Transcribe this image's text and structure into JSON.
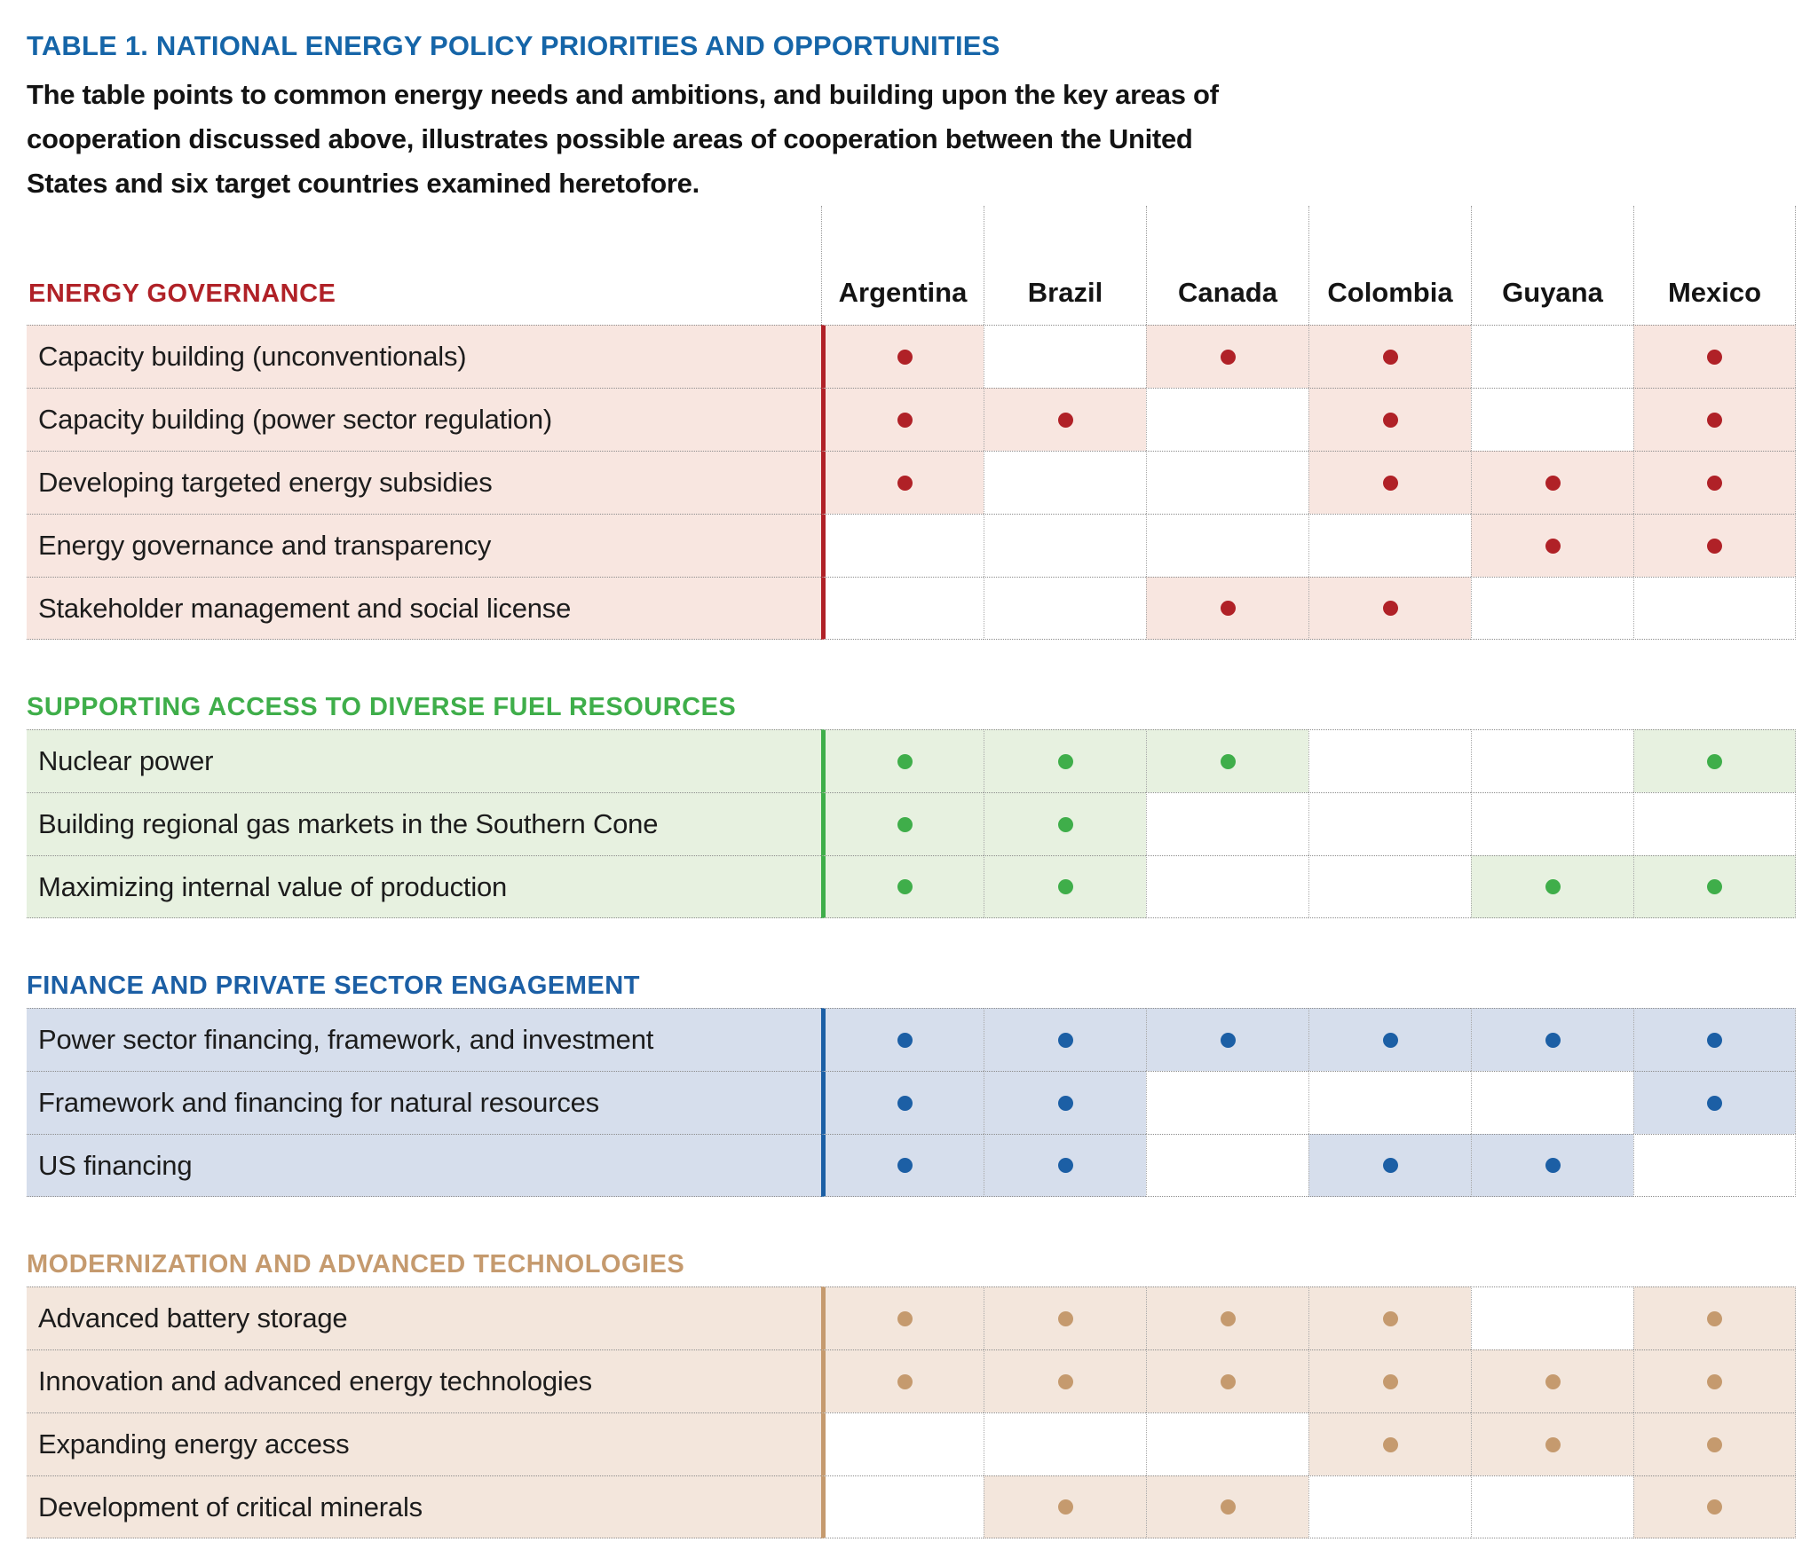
{
  "title": "TABLE 1. NATIONAL ENERGY POLICY PRIORITIES AND OPPORTUNITIES",
  "title_color": "#1565a8",
  "subtitle_lines": [
    "The table points to common energy needs and ambitions, and building upon the key areas of",
    "cooperation discussed above, illustrates possible areas of cooperation between the United",
    "States and six target countries examined heretofore."
  ],
  "countries": [
    "Argentina",
    "Brazil",
    "Canada",
    "Colombia",
    "Guyana",
    "Mexico"
  ],
  "marker": "filled-dot",
  "sections": [
    {
      "title": "ENERGY GOVERNANCE",
      "color": "#b02127",
      "bg": "#f8e6e0",
      "show_country_header": true,
      "rows": [
        {
          "label": "Capacity building (unconventionals)",
          "marks": [
            1,
            0,
            1,
            1,
            0,
            1
          ]
        },
        {
          "label": "Capacity building (power sector regulation)",
          "marks": [
            1,
            1,
            0,
            1,
            0,
            1
          ]
        },
        {
          "label": "Developing targeted energy subsidies",
          "marks": [
            1,
            0,
            0,
            1,
            1,
            1
          ]
        },
        {
          "label": "Energy governance and transparency",
          "marks": [
            0,
            0,
            0,
            0,
            1,
            1
          ]
        },
        {
          "label": "Stakeholder management and social license",
          "marks": [
            0,
            0,
            1,
            1,
            0,
            0
          ]
        }
      ]
    },
    {
      "title": "SUPPORTING ACCESS TO DIVERSE FUEL RESOURCES",
      "color": "#3fae4a",
      "bg": "#e7f1e0",
      "show_country_header": false,
      "rows": [
        {
          "label": "Nuclear power",
          "marks": [
            1,
            1,
            1,
            0,
            0,
            1
          ]
        },
        {
          "label": "Building regional gas markets in the Southern Cone",
          "marks": [
            1,
            1,
            0,
            0,
            0,
            0
          ]
        },
        {
          "label": "Maximizing internal value of production",
          "marks": [
            1,
            1,
            0,
            0,
            1,
            1
          ]
        }
      ]
    },
    {
      "title": "FINANCE AND PRIVATE SECTOR ENGAGEMENT",
      "color": "#1c5fa5",
      "bg": "#d6deec",
      "show_country_header": false,
      "rows": [
        {
          "label": "Power sector financing, framework, and investment",
          "marks": [
            1,
            1,
            1,
            1,
            1,
            1
          ]
        },
        {
          "label": "Framework and financing for natural resources",
          "marks": [
            1,
            1,
            0,
            0,
            0,
            1
          ]
        },
        {
          "label": "US financing",
          "marks": [
            1,
            1,
            0,
            1,
            1,
            0
          ]
        }
      ]
    },
    {
      "title": "MODERNIZATION AND ADVANCED TECHNOLOGIES",
      "color": "#c59a6e",
      "bg": "#f3e6dc",
      "show_country_header": false,
      "rows": [
        {
          "label": "Advanced battery storage",
          "marks": [
            1,
            1,
            1,
            1,
            0,
            1
          ]
        },
        {
          "label": "Innovation and advanced energy technologies",
          "marks": [
            1,
            1,
            1,
            1,
            1,
            1
          ]
        },
        {
          "label": "Expanding energy access",
          "marks": [
            0,
            0,
            0,
            1,
            1,
            1
          ]
        },
        {
          "label": "Development of critical minerals",
          "marks": [
            0,
            1,
            1,
            0,
            0,
            1
          ]
        }
      ]
    }
  ]
}
